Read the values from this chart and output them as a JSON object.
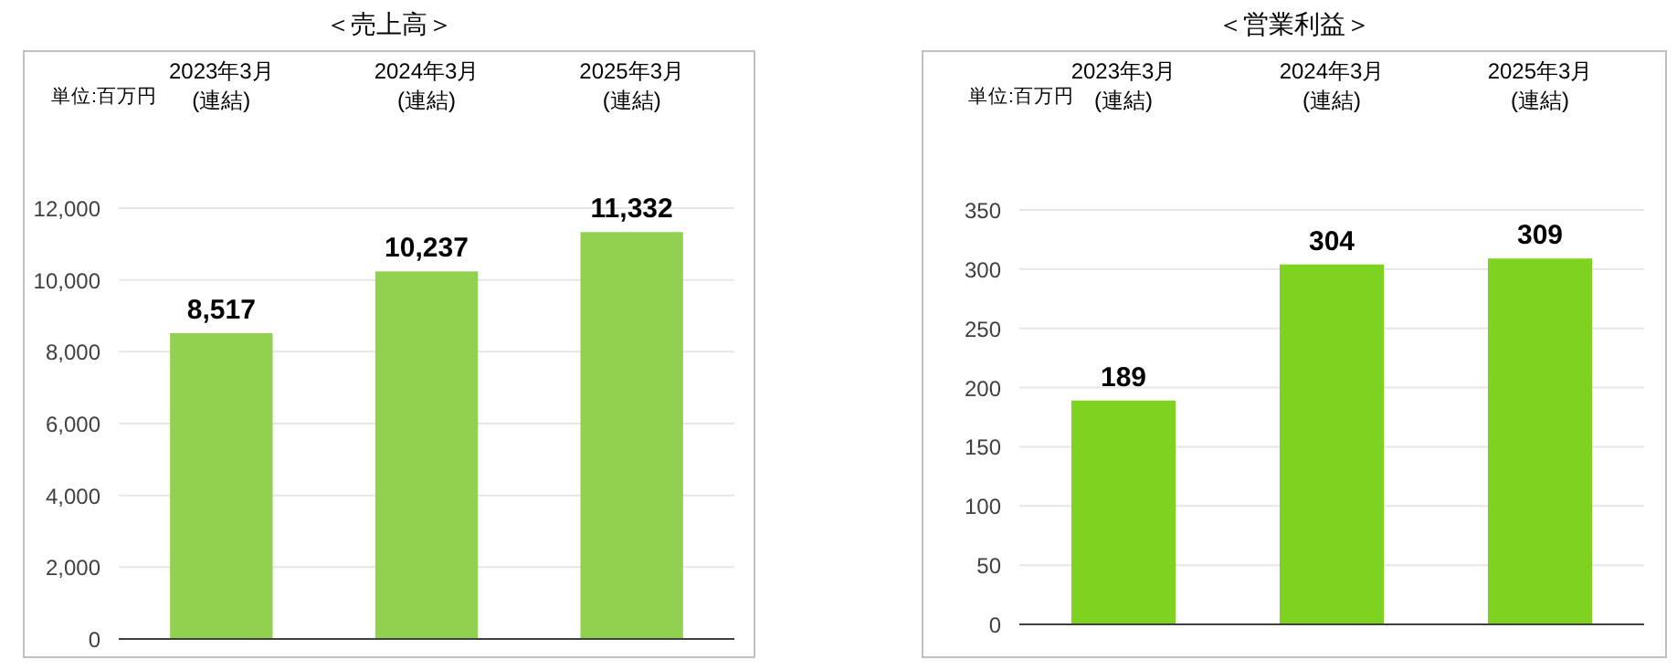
{
  "chart_data": [
    {
      "type": "bar",
      "title": "＜売上高＞",
      "annotations": [
        "単位:百万円"
      ],
      "categories": [
        "2023年3月\n(連結)",
        "2024年3月\n(連結)",
        "2025年3月\n(連結)"
      ],
      "values": [
        8517,
        10237,
        11332
      ],
      "value_labels": [
        "8,517",
        "10,237",
        "11,332"
      ],
      "color": "#92d050",
      "ylim": [
        0,
        12000
      ],
      "yticks": [
        {
          "value": 0,
          "label": "0"
        },
        {
          "value": 2000,
          "label": "2,000"
        },
        {
          "value": 4000,
          "label": "4,000"
        },
        {
          "value": 6000,
          "label": "6,000"
        },
        {
          "value": 8000,
          "label": "8,000"
        },
        {
          "value": 10000,
          "label": "10,000"
        },
        {
          "value": 12000,
          "label": "12,000"
        }
      ],
      "grid": "y"
    },
    {
      "type": "bar",
      "title": "＜営業利益＞",
      "annotations": [
        "単位:百万円"
      ],
      "categories": [
        "2023年3月\n(連結)",
        "2024年3月\n(連結)",
        "2025年3月\n(連結)"
      ],
      "values": [
        189,
        304,
        309
      ],
      "data_labels": true,
      "color": "#7ed321",
      "ylim": [
        0,
        350
      ],
      "yticks": [
        0,
        50,
        100,
        150,
        200,
        250,
        300,
        350
      ],
      "grid": "y"
    }
  ]
}
